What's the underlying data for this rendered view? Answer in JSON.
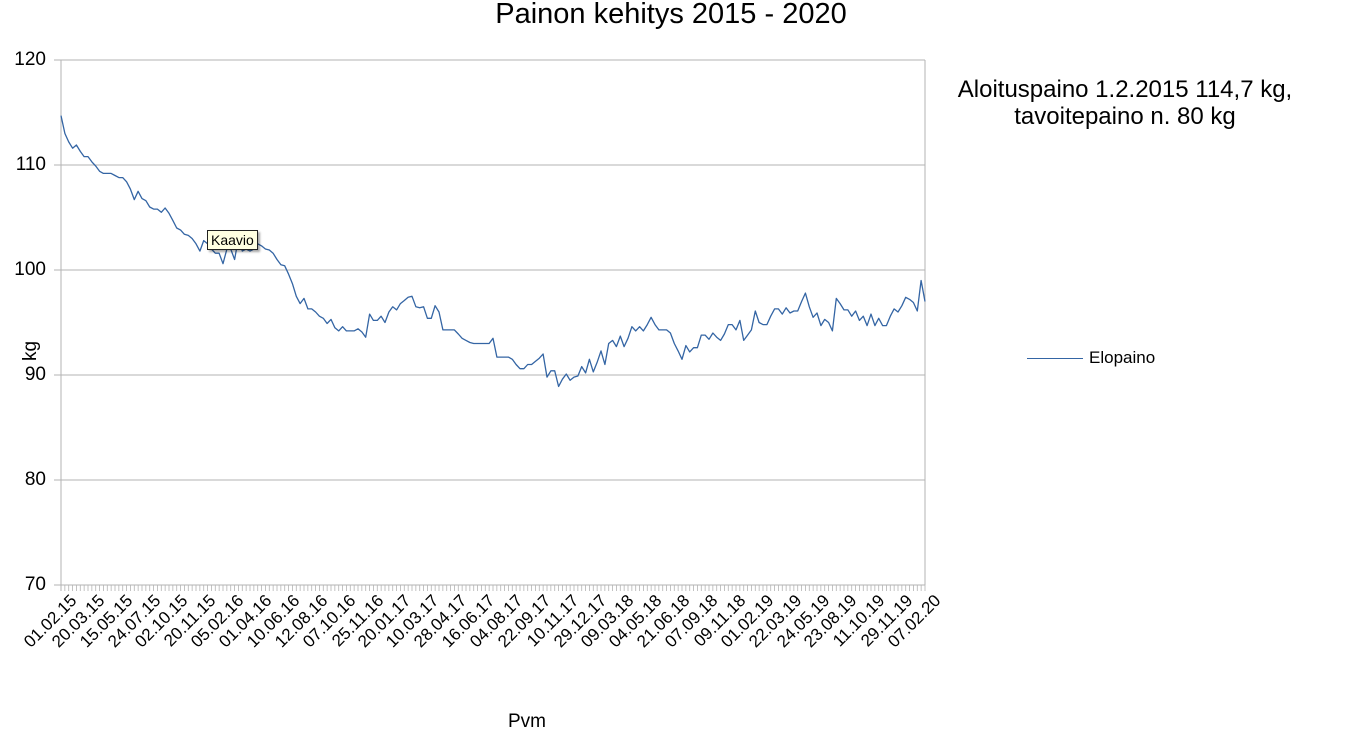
{
  "chart_data": {
    "type": "line",
    "title": "Painon kehitys 2015 - 2020",
    "annotation": [
      "Aloituspaino 1.2.2015 114,7 kg,",
      "tavoitepaino n. 80 kg"
    ],
    "xlabel": "Pvm",
    "ylabel": "kg",
    "ylim": [
      70,
      120
    ],
    "yticks": [
      70,
      80,
      90,
      100,
      110,
      120
    ],
    "grid": true,
    "legend_position": "right",
    "x_tick_labels": [
      "01.02.15",
      "20.03.15",
      "15.05.15",
      "24.07.15",
      "02.10.15",
      "20.11.15",
      "05.02.16",
      "01.04.16",
      "10.06.16",
      "12.08.16",
      "07.10.16",
      "25.11.16",
      "20.01.17",
      "10.03.17",
      "28.04.17",
      "16.06.17",
      "04.08.17",
      "22.09.17",
      "10.11.17",
      "29.12.17",
      "09.03.18",
      "04.05.18",
      "21.06.18",
      "07.09.18",
      "09.11.18",
      "01.02.19",
      "22.03.19",
      "24.05.19",
      "23.08.19",
      "11.10.19",
      "29.11.19",
      "07.02.20"
    ],
    "series": [
      {
        "name": "Elopaino",
        "color": "#3465a4",
        "values": [
          114.7,
          113.0,
          112.2,
          111.6,
          111.9,
          111.3,
          110.8,
          110.8,
          110.3,
          109.9,
          109.4,
          109.2,
          109.2,
          109.2,
          109.0,
          108.8,
          108.8,
          108.4,
          107.7,
          106.7,
          107.5,
          106.8,
          106.6,
          106.0,
          105.8,
          105.8,
          105.5,
          105.9,
          105.4,
          104.7,
          104.0,
          103.8,
          103.4,
          103.3,
          103.0,
          102.5,
          101.8,
          102.8,
          102.5,
          102.0,
          101.6,
          101.6,
          100.6,
          102.0,
          102.0,
          101.0,
          103.0,
          101.8,
          102.0,
          101.8,
          102.0,
          102.5,
          102.3,
          102.0,
          101.9,
          101.6,
          101.0,
          100.5,
          100.4,
          99.6,
          98.7,
          97.5,
          96.8,
          97.3,
          96.3,
          96.3,
          96.0,
          95.6,
          95.4,
          94.9,
          95.3,
          94.5,
          94.2,
          94.6,
          94.2,
          94.2,
          94.2,
          94.4,
          94.1,
          93.6,
          95.8,
          95.2,
          95.2,
          95.6,
          95.0,
          96.0,
          96.5,
          96.2,
          96.8,
          97.1,
          97.4,
          97.5,
          96.5,
          96.4,
          96.5,
          95.4,
          95.4,
          96.6,
          96.0,
          94.3,
          94.3,
          94.3,
          94.3,
          93.9,
          93.5,
          93.3,
          93.1,
          93.0,
          93.0,
          93.0,
          93.0,
          93.0,
          93.5,
          91.7,
          91.7,
          91.7,
          91.7,
          91.5,
          91.0,
          90.6,
          90.6,
          91.0,
          91.0,
          91.3,
          91.6,
          92.0,
          89.8,
          90.4,
          90.4,
          88.9,
          89.6,
          90.1,
          89.5,
          89.8,
          89.9,
          90.8,
          90.2,
          91.5,
          90.3,
          91.2,
          92.3,
          91.0,
          93.0,
          93.3,
          92.7,
          93.7,
          92.7,
          93.5,
          94.6,
          94.2,
          94.6,
          94.2,
          94.8,
          95.5,
          94.8,
          94.3,
          94.3,
          94.3,
          94.0,
          93.0,
          92.3,
          91.5,
          92.8,
          92.2,
          92.6,
          92.6,
          93.8,
          93.8,
          93.4,
          94.0,
          93.6,
          93.3,
          93.9,
          94.8,
          94.8,
          94.3,
          95.2,
          93.3,
          93.8,
          94.3,
          96.1,
          95.0,
          94.8,
          94.8,
          95.6,
          96.3,
          96.3,
          95.8,
          96.4,
          95.9,
          96.1,
          96.1,
          97.0,
          97.8,
          96.5,
          95.5,
          95.9,
          94.7,
          95.3,
          95.0,
          94.2,
          97.3,
          96.8,
          96.2,
          96.2,
          95.6,
          96.1,
          95.2,
          95.6,
          94.7,
          95.8,
          94.7,
          95.4,
          94.7,
          94.7,
          95.6,
          96.3,
          96.0,
          96.6,
          97.4,
          97.2,
          96.9,
          96.1,
          99.0,
          97.0
        ]
      }
    ]
  },
  "tooltip": {
    "text": "Kaavio"
  },
  "colors": {
    "line": "#3465a4",
    "grid": "#b3b3b3",
    "tooltip_bg": "#ffffe1"
  }
}
